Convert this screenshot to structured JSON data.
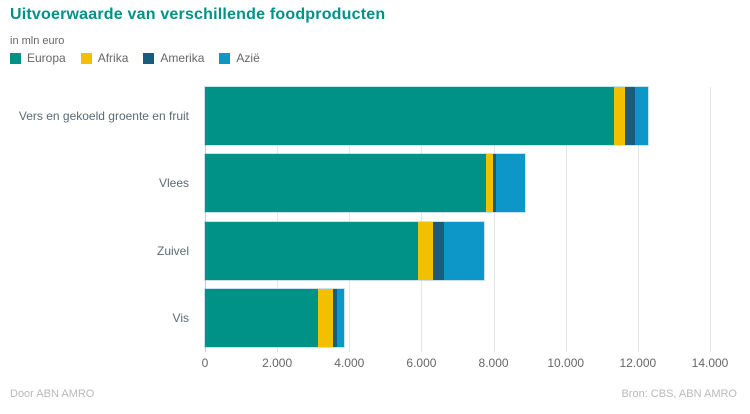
{
  "header": {
    "title": "Uitvoerwaarde van verschillende foodproducten",
    "subtitle": "in mln euro"
  },
  "legend": {
    "items": [
      {
        "label": "Europa",
        "color": "#009286"
      },
      {
        "label": "Afrika",
        "color": "#F3C000"
      },
      {
        "label": "Amerika",
        "color": "#1A5C7D"
      },
      {
        "label": "Azië",
        "color": "#0D96C8"
      }
    ]
  },
  "footer": {
    "left": "Door ABN AMRO",
    "right": "Bron: CBS, ABN AMRO"
  },
  "chart_data": {
    "type": "bar",
    "orientation": "horizontal",
    "stacked": true,
    "title": "Uitvoerwaarde van verschillende foodproducten",
    "subtitle": "in mln euro",
    "categories": [
      "Vers en gekoeld groente en fruit",
      "Vlees",
      "Zuivel",
      "Vis"
    ],
    "series": [
      {
        "name": "Europa",
        "color": "#009286",
        "values": [
          11350,
          7790,
          5900,
          3130
        ]
      },
      {
        "name": "Afrika",
        "color": "#F3C000",
        "values": [
          280,
          190,
          420,
          420
        ]
      },
      {
        "name": "Amerika",
        "color": "#1A5C7D",
        "values": [
          300,
          90,
          310,
          110
        ]
      },
      {
        "name": "Azië",
        "color": "#0D96C8",
        "values": [
          350,
          800,
          1100,
          190
        ]
      }
    ],
    "totals": [
      12280,
      8870,
      7730,
      3850
    ],
    "xlim": [
      0,
      14000
    ],
    "xticks": [
      0,
      2000,
      4000,
      6000,
      8000,
      10000,
      12000,
      14000
    ],
    "xtick_labels": [
      "0",
      "2.000",
      "4.000",
      "6.000",
      "8.000",
      "10.000",
      "12.000",
      "14.000"
    ],
    "grid": "vertical",
    "legend_position": "top-left"
  }
}
